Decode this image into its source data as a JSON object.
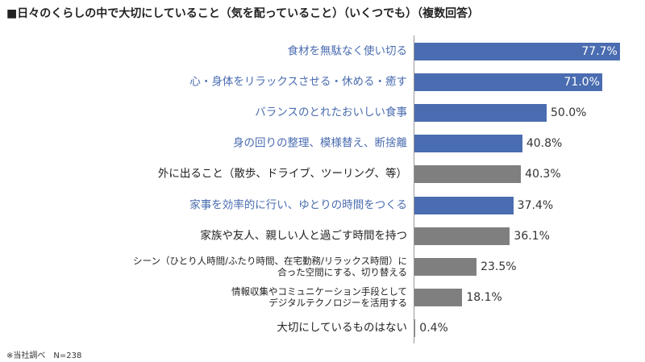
{
  "chart_data": {
    "type": "bar",
    "orientation": "horizontal",
    "title": "■日々のくらしの中で大切にしていること（気を配っていること）（いくつでも）（複数回答）",
    "categories": [
      "食材を無駄なく使い切る",
      "心・身体をリラックスさせる・休める・癒す",
      "バランスのとれたおいしい食事",
      "身の回りの整理、模様替え、断捨離",
      "外に出ること（散歩、ドライブ、ツーリング、等）",
      "家事を効率的に行い、ゆとりの時間をつくる",
      "家族や友人、親しい人と過ごす時間を持つ",
      "シーン（ひとり人時間/ふたり時間、在宅勤務/リラックス時間）に\n合った空間にする、切り替える",
      "情報収集やコミュニケーション手段として\nデジタルテクノロジーを活用する",
      "大切にしているものはない"
    ],
    "values": [
      77.7,
      71.0,
      50.0,
      40.8,
      40.3,
      37.4,
      36.1,
      23.5,
      18.1,
      0.4
    ],
    "value_labels": [
      "77.7%",
      "71.0%",
      "50.0%",
      "40.8%",
      "40.3%",
      "37.4%",
      "36.1%",
      "23.5%",
      "18.1%",
      "0.4%"
    ],
    "colors": [
      "#4a6cb0",
      "#4a6cb0",
      "#4a6cb0",
      "#4a6cb0",
      "#7f7f7f",
      "#4a6cb0",
      "#7f7f7f",
      "#7f7f7f",
      "#7f7f7f",
      "#7f7f7f"
    ],
    "xlim": [
      0,
      100
    ],
    "note": "※当社調べ　N=238"
  }
}
